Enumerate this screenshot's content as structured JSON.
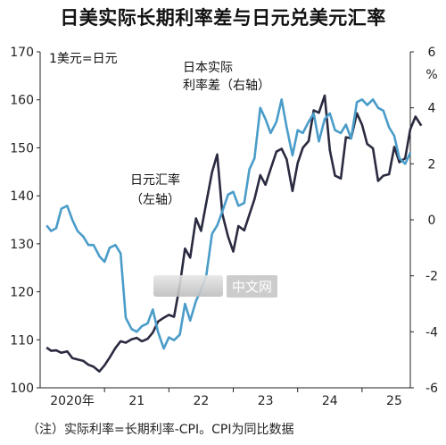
{
  "page": {
    "title": "日美实际长期利率差与日元兑美元汇率"
  },
  "note": "（注）实际利率=长期利率-CPI。CPI为同比数据",
  "watermark": {
    "text": "中文网"
  },
  "chart_data": {
    "type": "line",
    "title": "日美实际长期利率差与日元兑美元汇率",
    "unit_left": "1美元=日元",
    "unit_right": "%",
    "x_range": [
      2020.0,
      2025.75
    ],
    "x_ticks": [
      {
        "x": 2020.5,
        "label": "2020年"
      },
      {
        "x": 2021.5,
        "label": "21"
      },
      {
        "x": 2022.5,
        "label": "22"
      },
      {
        "x": 2023.5,
        "label": "23"
      },
      {
        "x": 2024.5,
        "label": "24"
      },
      {
        "x": 2025.5,
        "label": "25"
      }
    ],
    "y_left": {
      "range": [
        100,
        170
      ],
      "ticks": [
        100,
        110,
        120,
        130,
        140,
        150,
        160,
        170
      ]
    },
    "y_right": {
      "range": [
        -6,
        6
      ],
      "ticks": [
        -6,
        -4,
        -2,
        0,
        2,
        4,
        6
      ]
    },
    "grid": false,
    "annotations": [
      {
        "lines": [
          "日本实际",
          "利率差（右轴）"
        ],
        "series": "rate_diff"
      },
      {
        "lines": [
          "日元汇率",
          "（左轴）"
        ],
        "series": "yen"
      }
    ],
    "series": [
      {
        "id": "yen",
        "axis": "left",
        "color": "#2a2a40",
        "points": [
          [
            2020.1,
            108.4
          ],
          [
            2020.17,
            107.7
          ],
          [
            2020.25,
            107.8
          ],
          [
            2020.33,
            107.3
          ],
          [
            2020.42,
            107.6
          ],
          [
            2020.5,
            106.2
          ],
          [
            2020.58,
            105.9
          ],
          [
            2020.67,
            105.6
          ],
          [
            2020.75,
            104.8
          ],
          [
            2020.83,
            104.4
          ],
          [
            2020.92,
            103.4
          ],
          [
            2021.0,
            104.7
          ],
          [
            2021.08,
            106.3
          ],
          [
            2021.17,
            108.3
          ],
          [
            2021.25,
            109.7
          ],
          [
            2021.33,
            109.4
          ],
          [
            2021.42,
            110.1
          ],
          [
            2021.5,
            110.4
          ],
          [
            2021.58,
            109.7
          ],
          [
            2021.67,
            110.2
          ],
          [
            2021.75,
            111.5
          ],
          [
            2021.83,
            113.8
          ],
          [
            2021.92,
            114.6
          ],
          [
            2022.0,
            115.2
          ],
          [
            2022.08,
            114.8
          ],
          [
            2022.17,
            121.4
          ],
          [
            2022.25,
            129.0
          ],
          [
            2022.33,
            127.1
          ],
          [
            2022.42,
            135.3
          ],
          [
            2022.5,
            132.7
          ],
          [
            2022.58,
            138.5
          ],
          [
            2022.67,
            144.9
          ],
          [
            2022.75,
            148.6
          ],
          [
            2022.83,
            136.2
          ],
          [
            2022.92,
            131.5
          ],
          [
            2023.0,
            128.4
          ],
          [
            2023.08,
            133.7
          ],
          [
            2023.17,
            132.8
          ],
          [
            2023.25,
            136.1
          ],
          [
            2023.33,
            139.3
          ],
          [
            2023.42,
            144.3
          ],
          [
            2023.5,
            142.3
          ],
          [
            2023.58,
            145.6
          ],
          [
            2023.67,
            149.2
          ],
          [
            2023.75,
            149.8
          ],
          [
            2023.83,
            147.6
          ],
          [
            2023.92,
            141.0
          ],
          [
            2024.0,
            146.8
          ],
          [
            2024.08,
            150.0
          ],
          [
            2024.17,
            151.4
          ],
          [
            2024.25,
            157.8
          ],
          [
            2024.33,
            157.3
          ],
          [
            2024.42,
            160.9
          ],
          [
            2024.5,
            149.5
          ],
          [
            2024.58,
            144.2
          ],
          [
            2024.67,
            143.6
          ],
          [
            2024.75,
            152.2
          ],
          [
            2024.83,
            152.0
          ],
          [
            2024.92,
            157.2
          ],
          [
            2025.0,
            154.8
          ],
          [
            2025.08,
            150.8
          ],
          [
            2025.17,
            149.9
          ],
          [
            2025.25,
            143.1
          ],
          [
            2025.33,
            144.2
          ],
          [
            2025.42,
            144.5
          ],
          [
            2025.5,
            150.2
          ],
          [
            2025.58,
            147.0
          ],
          [
            2025.67,
            147.8
          ],
          [
            2025.75,
            153.9
          ],
          [
            2025.83,
            156.5
          ],
          [
            2025.92,
            154.6
          ]
        ]
      },
      {
        "id": "rate_diff",
        "axis": "right",
        "color": "#4a9cc9",
        "points": [
          [
            2020.1,
            -0.2
          ],
          [
            2020.17,
            -0.4
          ],
          [
            2020.25,
            -0.3
          ],
          [
            2020.33,
            0.4
          ],
          [
            2020.42,
            0.5
          ],
          [
            2020.5,
            0.0
          ],
          [
            2020.58,
            -0.4
          ],
          [
            2020.67,
            -0.6
          ],
          [
            2020.75,
            -0.9
          ],
          [
            2020.83,
            -0.9
          ],
          [
            2020.92,
            -1.3
          ],
          [
            2021.0,
            -1.5
          ],
          [
            2021.08,
            -1.0
          ],
          [
            2021.17,
            -0.9
          ],
          [
            2021.25,
            -1.2
          ],
          [
            2021.33,
            -3.5
          ],
          [
            2021.42,
            -3.9
          ],
          [
            2021.5,
            -4.0
          ],
          [
            2021.58,
            -3.8
          ],
          [
            2021.67,
            -3.7
          ],
          [
            2021.75,
            -3.2
          ],
          [
            2021.83,
            -4.0
          ],
          [
            2021.92,
            -4.6
          ],
          [
            2022.0,
            -4.2
          ],
          [
            2022.08,
            -4.3
          ],
          [
            2022.17,
            -4.1
          ],
          [
            2022.25,
            -3.0
          ],
          [
            2022.33,
            -3.6
          ],
          [
            2022.42,
            -2.9
          ],
          [
            2022.5,
            -2.5
          ],
          [
            2022.58,
            -2.0
          ],
          [
            2022.67,
            -0.5
          ],
          [
            2022.75,
            -0.2
          ],
          [
            2022.83,
            0.3
          ],
          [
            2022.92,
            0.9
          ],
          [
            2023.0,
            1.0
          ],
          [
            2023.08,
            0.5
          ],
          [
            2023.17,
            0.6
          ],
          [
            2023.25,
            1.8
          ],
          [
            2023.33,
            2.2
          ],
          [
            2023.42,
            4.0
          ],
          [
            2023.5,
            3.6
          ],
          [
            2023.58,
            3.1
          ],
          [
            2023.67,
            3.5
          ],
          [
            2023.75,
            4.3
          ],
          [
            2023.83,
            3.3
          ],
          [
            2023.92,
            2.3
          ],
          [
            2024.0,
            3.2
          ],
          [
            2024.08,
            3.1
          ],
          [
            2024.17,
            3.5
          ],
          [
            2024.25,
            3.8
          ],
          [
            2024.33,
            2.8
          ],
          [
            2024.42,
            3.6
          ],
          [
            2024.5,
            3.8
          ],
          [
            2024.58,
            3.2
          ],
          [
            2024.67,
            3.1
          ],
          [
            2024.75,
            3.4
          ],
          [
            2024.83,
            2.9
          ],
          [
            2024.92,
            4.2
          ],
          [
            2025.0,
            4.3
          ],
          [
            2025.08,
            4.1
          ],
          [
            2025.17,
            4.3
          ],
          [
            2025.25,
            4.0
          ],
          [
            2025.33,
            3.9
          ],
          [
            2025.42,
            3.3
          ],
          [
            2025.5,
            3.0
          ],
          [
            2025.58,
            2.2
          ],
          [
            2025.67,
            2.0
          ],
          [
            2025.75,
            2.4
          ]
        ]
      }
    ]
  }
}
